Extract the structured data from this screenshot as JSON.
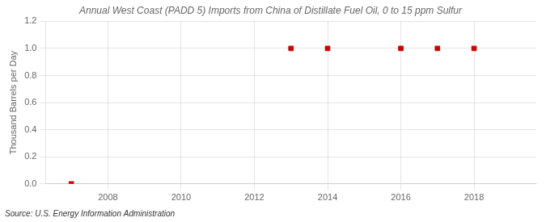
{
  "chart_data": {
    "type": "scatter",
    "title": "Annual West Coast (PADD 5) Imports from China of Distillate Fuel Oil, 0 to 15 ppm Sulfur",
    "ylabel": "Thousand Barrels per Day",
    "source": "Source: U.S. Energy Information Administration",
    "x": [
      2007,
      2013,
      2014,
      2016,
      2017,
      2018
    ],
    "values": [
      0.0,
      1.0,
      1.0,
      1.0,
      1.0,
      1.0
    ],
    "color": "#cc0000",
    "marker": "square",
    "xlim": [
      2006.3,
      2019.7
    ],
    "ylim": [
      0.0,
      1.2
    ],
    "xticks": [
      2008,
      2010,
      2012,
      2014,
      2016,
      2018
    ],
    "yticks": [
      {
        "value": 0,
        "label": "0.0"
      },
      0.2,
      0.4,
      0.6,
      0.8,
      {
        "value": 1,
        "label": "1.0"
      },
      1.2
    ],
    "grid": true
  }
}
